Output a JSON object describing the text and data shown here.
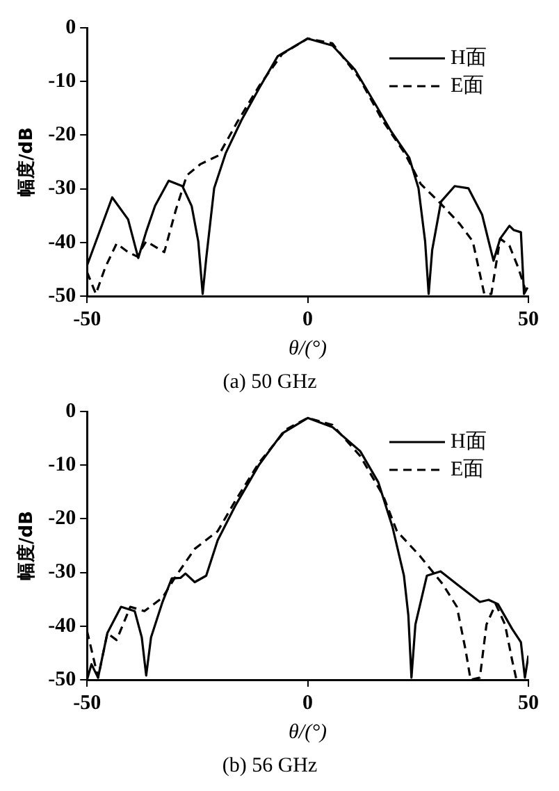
{
  "chart_data": [
    {
      "type": "line",
      "title": "(a) 50 GHz",
      "xlabel": "θ/(°)",
      "ylabel": "幅度/dB",
      "xlim": [
        -50,
        50
      ],
      "xticks": [
        -50,
        0,
        50
      ],
      "ylim": [
        -50,
        0
      ],
      "yticks": [
        -50,
        -40,
        -30,
        -20,
        -10,
        0
      ],
      "legend": "top right",
      "marker": "none",
      "series": [
        {
          "name": "H面",
          "color": "#000000",
          "line_style": "solid",
          "x": [
            -50,
            -44.3,
            -40.7,
            -38.4,
            -36.6,
            -34.6,
            -31.5,
            -28.4,
            -26.3,
            -24.8,
            -23.8,
            -23,
            -21.2,
            -18.6,
            -15,
            -10.9,
            -6.8,
            0,
            5.6,
            10.7,
            14.8,
            18.9,
            23,
            25.1,
            26.6,
            27.4,
            28.2,
            30.2,
            33.3,
            36.4,
            39.5,
            41,
            42.1,
            43.6,
            45.7,
            46.7,
            48.3,
            49,
            49.8
          ],
          "values": [
            -44.3,
            -31.6,
            -35.7,
            -42.9,
            -38,
            -33.2,
            -28.5,
            -29.5,
            -33.2,
            -39.8,
            -49.6,
            -43,
            -29.9,
            -23.4,
            -17.2,
            -11.1,
            -5.3,
            -2,
            -3.3,
            -7.8,
            -13.5,
            -19.3,
            -24.2,
            -29.9,
            -39.8,
            -49.6,
            -41.4,
            -32.4,
            -29.5,
            -29.9,
            -34.8,
            -39.8,
            -43.4,
            -39.3,
            -36.9,
            -37.7,
            -38.1,
            -49.6,
            -48.4
          ]
        },
        {
          "name": "E面",
          "color": "#000000",
          "line_style": "dashed",
          "x": [
            -50,
            -48,
            -45.9,
            -43.3,
            -40.7,
            -38.7,
            -36.6,
            -32.5,
            -29.9,
            -27.4,
            -24.3,
            -20.2,
            -16,
            -10.9,
            -5.8,
            0,
            5.6,
            11.7,
            16.9,
            22,
            25.6,
            29.7,
            34.4,
            37.4,
            40,
            41.6,
            43.6,
            45.7,
            47.7,
            49.3
          ],
          "values": [
            -45.5,
            -49.6,
            -44.7,
            -40.2,
            -41.8,
            -42.6,
            -39.8,
            -41.8,
            -34,
            -27.5,
            -25.4,
            -23.8,
            -17.6,
            -10.7,
            -4.9,
            -2,
            -2.9,
            -9.4,
            -17.2,
            -23.4,
            -29.1,
            -32.4,
            -36.5,
            -39.8,
            -49.6,
            -49.6,
            -39.3,
            -40.6,
            -44.7,
            -48.8
          ]
        }
      ]
    },
    {
      "type": "line",
      "title": "(b) 56 GHz",
      "xlabel": "θ/(°)",
      "ylabel": "幅度/dB",
      "xlim": [
        -50,
        50
      ],
      "xticks": [
        -50,
        0,
        50
      ],
      "ylim": [
        -50,
        0
      ],
      "yticks": [
        -50,
        -40,
        -30,
        -20,
        -10,
        0
      ],
      "legend": "top right",
      "marker": "none",
      "series": [
        {
          "name": "H面",
          "color": "#000000",
          "line_style": "solid",
          "x": [
            -50,
            -49,
            -47.5,
            -45.4,
            -42.3,
            -39.2,
            -37.6,
            -36.6,
            -35.5,
            -32.9,
            -30.8,
            -28.8,
            -27.7,
            -25.6,
            -23,
            -20.4,
            -16.3,
            -11,
            -5.8,
            0,
            5.6,
            11.9,
            16,
            19.2,
            21.8,
            22.8,
            23.5,
            24.4,
            27,
            30.1,
            33.8,
            39,
            41,
            43.1,
            46.3,
            48.3,
            49.2,
            50
          ],
          "values": [
            -50,
            -47.1,
            -49.6,
            -41.3,
            -36.4,
            -37.2,
            -42.1,
            -49.2,
            -42.1,
            -35.5,
            -31.1,
            -31,
            -30.2,
            -31.8,
            -30.6,
            -24,
            -17.4,
            -9.9,
            -4.1,
            -1.2,
            -2.9,
            -7.4,
            -13.2,
            -21.5,
            -30.6,
            -38,
            -49.6,
            -39.7,
            -30.6,
            -29.8,
            -32.2,
            -35.5,
            -35.1,
            -35.9,
            -40.5,
            -43,
            -49.6,
            -45.5
          ]
        },
        {
          "name": "E面",
          "color": "#000000",
          "line_style": "dashed",
          "x": [
            -50,
            -47.5,
            -45.4,
            -43.3,
            -40.2,
            -37,
            -32.9,
            -29.8,
            -25.6,
            -20.4,
            -16.3,
            -11,
            -4.8,
            0,
            5.6,
            11.9,
            17.1,
            20.2,
            25.4,
            30.6,
            33.8,
            35.8,
            36.9,
            39,
            40.5,
            42.6,
            44.7,
            46.3,
            47.3
          ],
          "values": [
            -40.9,
            -49.6,
            -41.3,
            -42.6,
            -36.4,
            -37.2,
            -34.7,
            -30.6,
            -25.6,
            -22.3,
            -16.5,
            -9.5,
            -3.3,
            -1.2,
            -2.5,
            -8.3,
            -15.7,
            -22.3,
            -26.9,
            -32.2,
            -36.4,
            -44.6,
            -50,
            -49.6,
            -39.7,
            -35.9,
            -39.7,
            -46.3,
            -50
          ]
        }
      ]
    }
  ]
}
